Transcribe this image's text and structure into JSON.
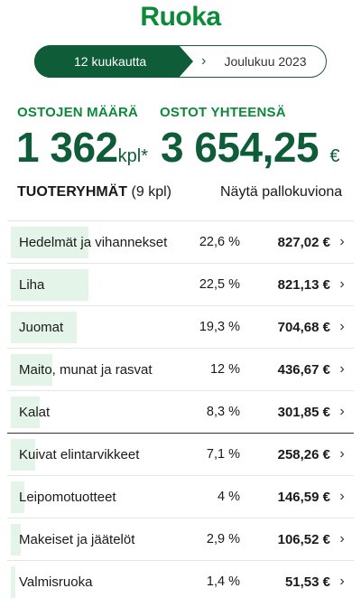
{
  "header": {
    "title": "Ruoka"
  },
  "period": {
    "active_label": "12 kuukautta",
    "inactive_label": "Joulukuu 2023",
    "chevron_icon": "chevron-right-icon"
  },
  "stats": {
    "count_label": "OSTOJEN MÄÄRÄ",
    "count_value": "1 362",
    "count_unit": "kpl*",
    "total_label": "OSTOT YHTEENSÄ",
    "total_value": "3 654,25",
    "total_unit": "€"
  },
  "groups": {
    "title": "TUOTERYHMÄT",
    "count": "(9 kpl)",
    "toggle_label": "Näytä pallokuviona"
  },
  "categories": [
    {
      "name": "Hedelmät ja vihannekset",
      "percent": "22,6 %",
      "share": 22.6,
      "amount": "827,02 €"
    },
    {
      "name": "Liha",
      "percent": "22,5 %",
      "share": 22.5,
      "amount": "821,13 €"
    },
    {
      "name": "Juomat",
      "percent": "19,3 %",
      "share": 19.3,
      "amount": "704,68 €"
    },
    {
      "name": "Maito, munat ja rasvat",
      "percent": "12 %",
      "share": 12,
      "amount": "436,67 €"
    },
    {
      "name": "Kalat",
      "percent": "8,3 %",
      "share": 8.3,
      "amount": "301,85 €"
    },
    {
      "name": "Kuivat elintarvikkeet",
      "percent": "7,1 %",
      "share": 7.1,
      "amount": "258,26 €"
    },
    {
      "name": "Leipomotuotteet",
      "percent": "4 %",
      "share": 4,
      "amount": "146,59 €"
    },
    {
      "name": "Makeiset ja jäätelöt",
      "percent": "2,9 %",
      "share": 2.9,
      "amount": "106,52 €"
    },
    {
      "name": "Valmisruoka",
      "percent": "1,4 %",
      "share": 1.4,
      "amount": "51,53 €"
    }
  ],
  "colors": {
    "brand_green": "#0b8a3a",
    "dark_green": "#0e5c38",
    "bar_fill": "#e4f4e8"
  }
}
